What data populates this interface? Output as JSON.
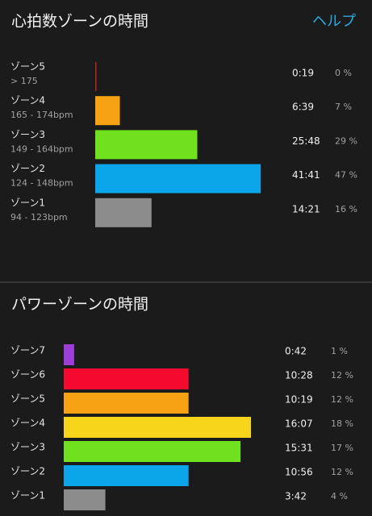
{
  "help_link": "ヘルプ",
  "chart_data": [
    {
      "type": "bar",
      "title": "心拍数ゾーンの時間",
      "categories": [
        "ゾーン5",
        "ゾーン4",
        "ゾーン3",
        "ゾーン2",
        "ゾーン1"
      ],
      "ranges": [
        "> 175",
        "165 - 174bpm",
        "149 - 164bpm",
        "124 - 148bpm",
        "94 - 123bpm"
      ],
      "times": [
        "0:19",
        "6:39",
        "25:48",
        "41:41",
        "14:21"
      ],
      "values": [
        0,
        7,
        29,
        47,
        16
      ],
      "value_labels": [
        "0 %",
        "7 %",
        "29 %",
        "47 %",
        "16 %"
      ],
      "colors": [
        "#b3261e",
        "#f7a212",
        "#6fe11f",
        "#0aa6e9",
        "#8c8c8c"
      ]
    },
    {
      "type": "bar",
      "title": "パワーゾーンの時間",
      "categories": [
        "ゾーン7",
        "ゾーン6",
        "ゾーン5",
        "ゾーン4",
        "ゾーン3",
        "ゾーン2",
        "ゾーン1"
      ],
      "times": [
        "0:42",
        "10:28",
        "10:19",
        "16:07",
        "15:31",
        "10:56",
        "3:42"
      ],
      "values": [
        1,
        12,
        12,
        18,
        17,
        12,
        4
      ],
      "value_labels": [
        "1 %",
        "12 %",
        "12 %",
        "18 %",
        "17 %",
        "12 %",
        "4 %"
      ],
      "colors": [
        "#9b3fd8",
        "#f5092f",
        "#f7a212",
        "#f6d51b",
        "#6fe11f",
        "#0aa6e9",
        "#8c8c8c"
      ]
    }
  ]
}
